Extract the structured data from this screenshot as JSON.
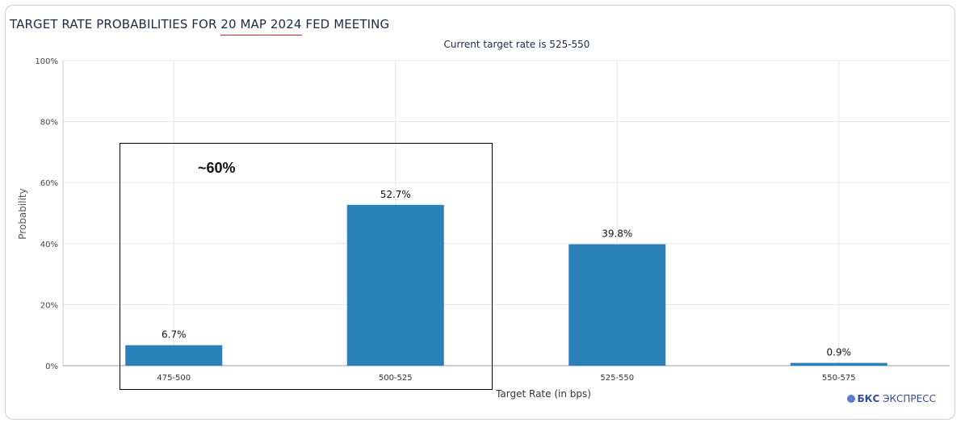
{
  "title_prefix": "TARGET RATE PROBABILITIES FOR ",
  "title_date": "20 МАР 2024",
  "title_suffix": " FED MEETING",
  "annotation": "~60%",
  "brand": {
    "name": "БКС",
    "suffix": " ЭКСПРЕСС"
  },
  "colors": {
    "bar": "#2a80b9",
    "grid": "#e6e6e6",
    "annotation_box": "#000000",
    "title_underline": "#d62728"
  },
  "chart_data": {
    "type": "bar",
    "title": "TARGET RATE PROBABILITIES FOR 20 МАР 2024 FED MEETING",
    "subtitle": "Current target rate is 525-550",
    "xlabel": "Target Rate (in bps)",
    "ylabel": "Probability",
    "categories": [
      "475-500",
      "500-525",
      "525-550",
      "550-575"
    ],
    "values": [
      6.7,
      52.7,
      39.8,
      0.9
    ],
    "value_labels": [
      "6.7%",
      "52.7%",
      "39.8%",
      "0.9%"
    ],
    "ylim": [
      0,
      100
    ],
    "yticks": [
      0,
      20,
      40,
      60,
      80,
      100
    ],
    "ytick_labels": [
      "0%",
      "20%",
      "40%",
      "60%",
      "80%",
      "100%"
    ],
    "grid": true,
    "legend": "none"
  }
}
